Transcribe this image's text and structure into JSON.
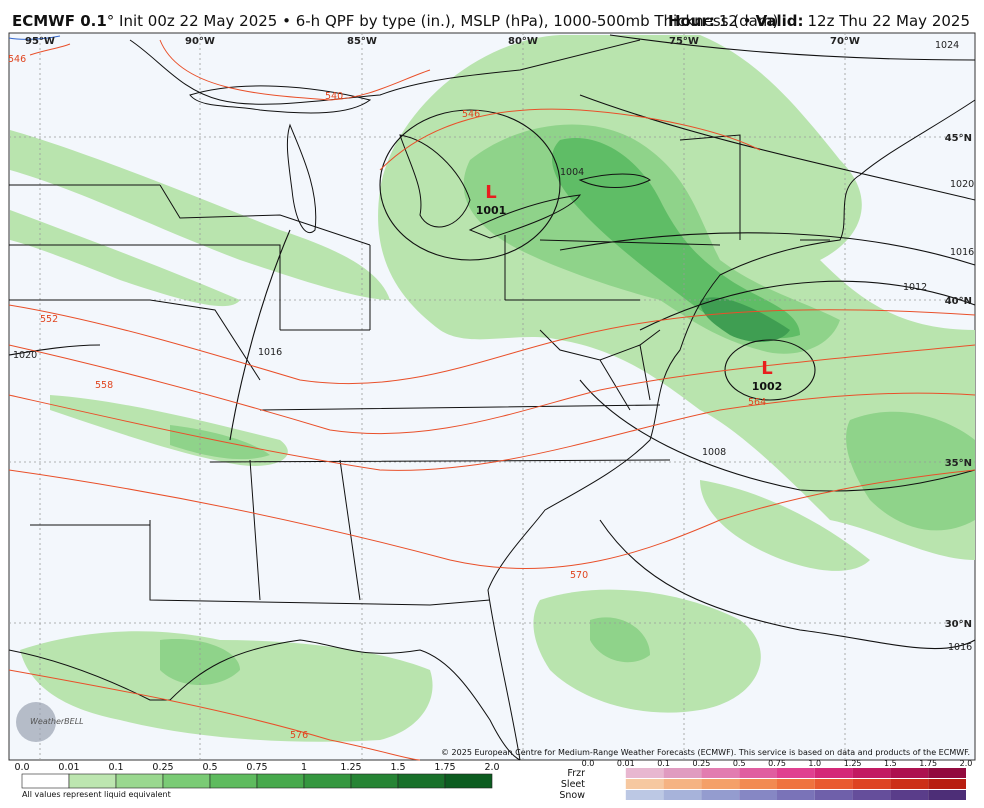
{
  "header": {
    "model": "ECMWF 0.1",
    "description": "° Init 00z 22 May 2025 • 6-h QPF by type (in.), MSLP (hPa), 1000-500mb Thickness (dam)",
    "hour_label": "Hour:",
    "hour": "12 •",
    "valid_label": "Valid:",
    "valid": "12z Thu 22 May 2025"
  },
  "map": {
    "lon_labels": [
      "95°W",
      "90°W",
      "85°W",
      "80°W",
      "75°W",
      "70°W"
    ],
    "lat_labels": [
      "45°N",
      "40°N",
      "35°N",
      "30°N"
    ],
    "isobar_labels": [
      "1024",
      "1020",
      "1016",
      "1012",
      "1008",
      "1004",
      "1016",
      "1020",
      "1016"
    ],
    "thickness_labels": [
      "540",
      "546",
      "546",
      "552",
      "558",
      "564",
      "570",
      "576"
    ],
    "lows": [
      {
        "symbol": "L",
        "pressure": "1001"
      },
      {
        "symbol": "L",
        "pressure": "1002"
      }
    ],
    "logo": "WeatherBELL",
    "credit": "© 2025 European Centre for Medium-Range Weather Forecasts (ECMWF). This service is based on data and products of the ECMWF."
  },
  "legend": {
    "rain_labels": [
      "0.0",
      "0.01",
      "0.1",
      "0.25",
      "0.5",
      "0.75",
      "1",
      "1.25",
      "1.5",
      "1.75",
      "2.0"
    ],
    "note": "All values represent liquid equivalent",
    "ptype_labels": [
      "0.0",
      "0.01",
      "0.1",
      "0.25",
      "0.5",
      "0.75",
      "1.0",
      "1.25",
      "1.5",
      "1.75",
      "2.0"
    ],
    "ptypes": [
      "Frzr",
      "Sleet",
      "Snow"
    ]
  }
}
